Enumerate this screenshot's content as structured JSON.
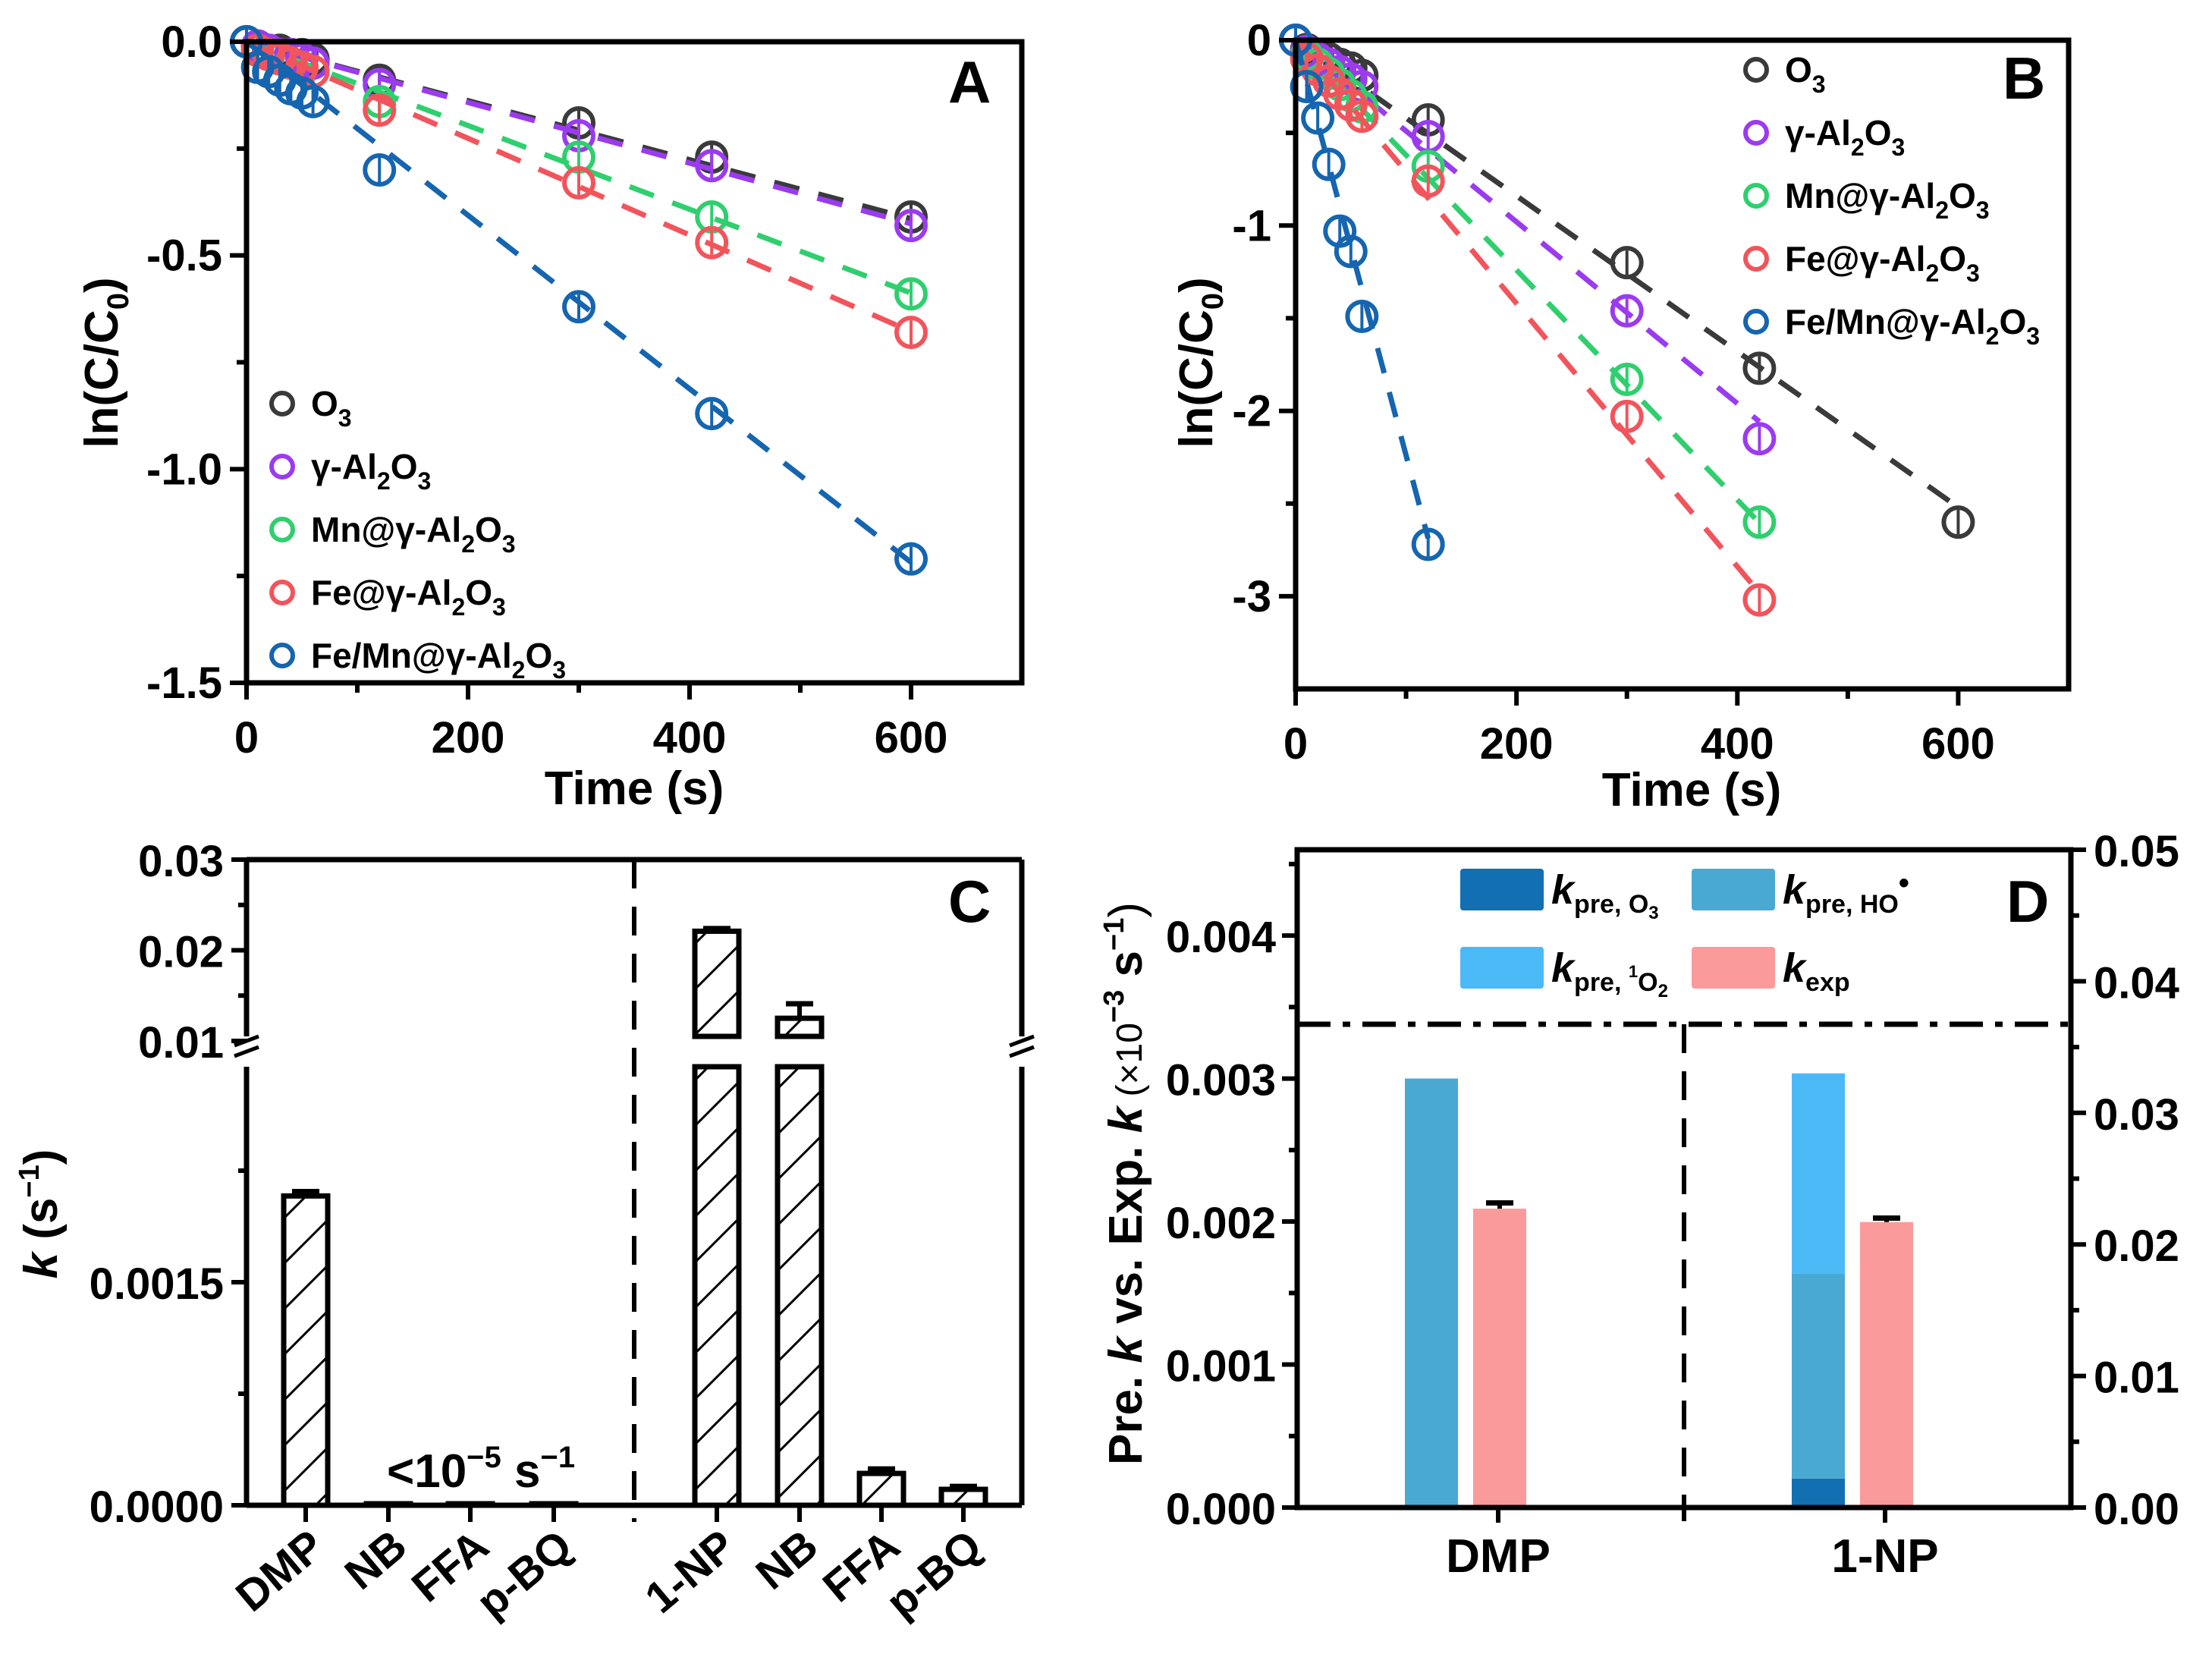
{
  "figure": {
    "panels": [
      "A",
      "B",
      "C",
      "D"
    ]
  },
  "chart_data": [
    {
      "panel": "A",
      "type": "scatter",
      "title": "",
      "panel_label": "A",
      "xlabel": "Time (s)",
      "ylabel": "ln(C/C0)",
      "ylabel_main": "ln(C/C",
      "ylabel_sub": "0",
      "ylabel_close": ")",
      "xlim": [
        0,
        700
      ],
      "ylim": [
        -1.5,
        0
      ],
      "xticks": [
        0,
        200,
        400,
        600
      ],
      "xtick_labels": [
        "0",
        "200",
        "400",
        "600"
      ],
      "yticks": [
        0,
        -0.5,
        -1.0,
        -1.5
      ],
      "ytick_labels": [
        "0.0",
        "-0.5",
        "-1.0",
        "-1.5"
      ],
      "legend_position": "bottom-left",
      "fit_lines": true,
      "series": [
        {
          "name": "O3",
          "label_main": "O",
          "label_sub": "3",
          "label_rest": "",
          "color": "#3a3a3a",
          "x": [
            0,
            10,
            20,
            30,
            40,
            50,
            60,
            120,
            300,
            420,
            600
          ],
          "y": [
            0,
            -0.01,
            -0.02,
            -0.02,
            -0.03,
            -0.03,
            -0.04,
            -0.09,
            -0.19,
            -0.27,
            -0.41
          ],
          "slope": -0.00069
        },
        {
          "name": "γ-Al2O3",
          "label_main": "γ-Al",
          "label_sub": "2",
          "label_rest": "O",
          "label_sub2": "3",
          "color": "#9b3bf0",
          "x": [
            0,
            10,
            20,
            30,
            40,
            50,
            60,
            120,
            300,
            420,
            600
          ],
          "y": [
            0,
            -0.01,
            -0.02,
            -0.03,
            -0.03,
            -0.04,
            -0.05,
            -0.1,
            -0.22,
            -0.29,
            -0.43
          ],
          "slope": -0.00071
        },
        {
          "name": "Mn@γ-Al2O3",
          "label_main": "Mn@γ-Al",
          "label_sub": "2",
          "label_rest": "O",
          "label_sub2": "3",
          "color": "#2fcf6e",
          "x": [
            0,
            10,
            20,
            30,
            40,
            50,
            60,
            120,
            300,
            420,
            600
          ],
          "y": [
            0,
            -0.02,
            -0.03,
            -0.04,
            -0.05,
            -0.06,
            -0.07,
            -0.14,
            -0.27,
            -0.41,
            -0.59
          ],
          "slope": -0.00098
        },
        {
          "name": "Fe@γ-Al2O3",
          "label_main": "Fe@γ-Al",
          "label_sub": "2",
          "label_rest": "O",
          "label_sub2": "3",
          "color": "#f2545b",
          "x": [
            0,
            10,
            20,
            30,
            40,
            50,
            60,
            120,
            300,
            420,
            600
          ],
          "y": [
            0,
            -0.02,
            -0.03,
            -0.04,
            -0.05,
            -0.06,
            -0.07,
            -0.16,
            -0.33,
            -0.47,
            -0.68
          ],
          "slope": -0.00113
        },
        {
          "name": "Fe/Mn@γ-Al2O3",
          "label_main": "Fe/Mn@γ-Al",
          "label_sub": "2",
          "label_rest": "O",
          "label_sub2": "3",
          "color": "#1565b0",
          "x": [
            0,
            10,
            20,
            30,
            40,
            50,
            60,
            120,
            300,
            420,
            600
          ],
          "y": [
            0,
            -0.06,
            -0.07,
            -0.09,
            -0.11,
            -0.12,
            -0.14,
            -0.3,
            -0.62,
            -0.87,
            -1.21
          ],
          "slope": -0.00203
        }
      ]
    },
    {
      "panel": "B",
      "type": "scatter",
      "title": "",
      "panel_label": "B",
      "xlabel": "Time (s)",
      "ylabel": "ln(C/C0)",
      "ylabel_main": "ln(C/C",
      "ylabel_sub": "0",
      "ylabel_close": ")",
      "xlim": [
        0,
        700
      ],
      "ylim": [
        -3.5,
        0
      ],
      "xticks": [
        0,
        200,
        400,
        600
      ],
      "xtick_labels": [
        "0",
        "200",
        "400",
        "600"
      ],
      "yticks": [
        0,
        -1,
        -2,
        -3
      ],
      "ytick_labels": [
        "0",
        "-1",
        "-2",
        "-3"
      ],
      "legend_position": "top-right",
      "fit_lines": true,
      "series": [
        {
          "name": "O3",
          "label_main": "O",
          "label_sub": "3",
          "label_rest": "",
          "color": "#3a3a3a",
          "x": [
            0,
            10,
            20,
            30,
            40,
            50,
            60,
            120,
            300,
            420,
            600
          ],
          "y": [
            0,
            -0.05,
            -0.08,
            -0.1,
            -0.13,
            -0.15,
            -0.19,
            -0.43,
            -1.2,
            -1.77,
            -2.6
          ],
          "slope": -0.0042
        },
        {
          "name": "γ-Al2O3",
          "label_main": "γ-Al",
          "label_sub": "2",
          "label_rest": "O",
          "label_sub2": "3",
          "color": "#9b3bf0",
          "x": [
            0,
            10,
            20,
            30,
            40,
            50,
            60,
            120,
            300,
            420
          ],
          "y": [
            0,
            -0.06,
            -0.1,
            -0.13,
            -0.17,
            -0.21,
            -0.25,
            -0.52,
            -1.46,
            -2.15
          ],
          "slope": -0.0049
        },
        {
          "name": "Mn@γ-Al2O3",
          "label_main": "Mn@γ-Al",
          "label_sub": "2",
          "label_rest": "O",
          "label_sub2": "3",
          "color": "#2fcf6e",
          "x": [
            0,
            10,
            20,
            30,
            40,
            50,
            60,
            120,
            300,
            420
          ],
          "y": [
            0,
            -0.08,
            -0.13,
            -0.18,
            -0.24,
            -0.3,
            -0.36,
            -0.68,
            -1.83,
            -2.6
          ],
          "slope": -0.0062
        },
        {
          "name": "Fe@γ-Al2O3",
          "label_main": "Fe@γ-Al",
          "label_sub": "2",
          "label_rest": "O",
          "label_sub2": "3",
          "color": "#f2545b",
          "x": [
            0,
            10,
            20,
            30,
            40,
            50,
            60,
            120,
            300,
            420
          ],
          "y": [
            0,
            -0.1,
            -0.16,
            -0.22,
            -0.29,
            -0.35,
            -0.41,
            -0.76,
            -2.03,
            -3.02
          ],
          "slope": -0.0071
        },
        {
          "name": "Fe/Mn@γ-Al2O3",
          "label_main": "Fe/Mn@γ-Al",
          "label_sub": "2",
          "label_rest": "O",
          "label_sub2": "3",
          "color": "#1565b0",
          "x": [
            0,
            10,
            20,
            30,
            40,
            50,
            60,
            120
          ],
          "y": [
            0,
            -0.25,
            -0.42,
            -0.67,
            -1.03,
            -1.14,
            -1.49,
            -2.72
          ],
          "slope": -0.0224
        }
      ]
    },
    {
      "panel": "C",
      "type": "bar",
      "title": "",
      "panel_label": "C",
      "xlabel": "",
      "ylabel": "k (s−1)",
      "ylabel_k": "k",
      "ylabel_unit": " (s",
      "ylabel_sup": "−1",
      "ylabel_close": ")",
      "broken_axis": true,
      "lower_ylim": [
        0,
        0.003
      ],
      "upper_ylim": [
        0.01,
        0.03
      ],
      "lower_yticks": [
        0,
        0.0015
      ],
      "lower_ytick_labels": [
        "0.0000",
        "0.0015"
      ],
      "upper_yticks": [
        0.01,
        0.02,
        0.03
      ],
      "upper_ytick_labels": [
        "0.01",
        "0.02",
        "0.03"
      ],
      "groups": [
        "DMP group",
        "1-NP group"
      ],
      "categories": [
        "DMP",
        "NB",
        "FFA",
        "p-BQ",
        "1-NP",
        "NB",
        "FFA",
        "p-BQ"
      ],
      "values": [
        0.00208,
        5e-06,
        5e-06,
        5e-06,
        0.0221,
        0.0125,
        0.000214,
        0.000107
      ],
      "errors": [
        3e-05,
        0,
        0,
        0,
        0.0003,
        0.0016,
        3e-05,
        2e-05
      ],
      "pattern": "hatched",
      "annotation": {
        "main": "<10",
        "sup1": "−5",
        "unit": " s",
        "sup2": "−1"
      }
    },
    {
      "panel": "D",
      "type": "bar",
      "title": "",
      "panel_label": "D",
      "xlabel": "",
      "ylabel": "Pre. k vs. Exp. k (×10−3 s−1)",
      "ylabel_parts": {
        "a": "Pre. ",
        "k1": "k",
        "b": " vs. ",
        "c": "Exp. ",
        "k2": "k",
        "d": " (×10",
        "sup1": "−3",
        "e": " s",
        "sup2": "−1",
        "f": ")"
      },
      "categories": [
        "DMP",
        "1-NP"
      ],
      "left_ylim": [
        0,
        0.0046
      ],
      "left_yticks": [
        0,
        0.001,
        0.002,
        0.003,
        0.004
      ],
      "left_ytick_labels": [
        "0.000",
        "0.001",
        "0.002",
        "0.003",
        "0.004"
      ],
      "right_ylim": [
        0,
        0.05
      ],
      "right_yticks": [
        0,
        0.01,
        0.02,
        0.03,
        0.04,
        0.05
      ],
      "right_ytick_labels": [
        "0.00",
        "0.01",
        "0.02",
        "0.03",
        "0.04",
        "0.05"
      ],
      "axis_assignment": {
        "DMP": "left",
        "1-NP": "right"
      },
      "legend_position": "top",
      "legend": [
        {
          "key": "kpre_O3",
          "k": "k",
          "sub": "pre, O",
          "sub2": "3",
          "color": "#116fb2"
        },
        {
          "key": "kpre_HO",
          "k": "k",
          "sub": "pre, HO",
          "sup": "•",
          "color": "#4aa9d3"
        },
        {
          "key": "kpre_1O2",
          "k": "k",
          "sub": "pre, ",
          "sup": "1",
          "sub_b": "O",
          "sub2": "2",
          "color": "#4cb9f7"
        },
        {
          "key": "kexp",
          "k": "k",
          "sub": "exp",
          "color": "#fb9a9a"
        }
      ],
      "series": [
        {
          "name": "kpre,O3",
          "values": [
            0.0,
            0.0022
          ]
        },
        {
          "name": "kpre,HO•",
          "values": [
            0.003,
            0.0156
          ]
        },
        {
          "name": "kpre,1O2",
          "values": [
            0.0,
            0.0152
          ]
        },
        {
          "name": "kexp",
          "values": [
            0.00209,
            0.0217
          ],
          "errors": [
            4e-05,
            0.0003
          ]
        }
      ]
    }
  ]
}
